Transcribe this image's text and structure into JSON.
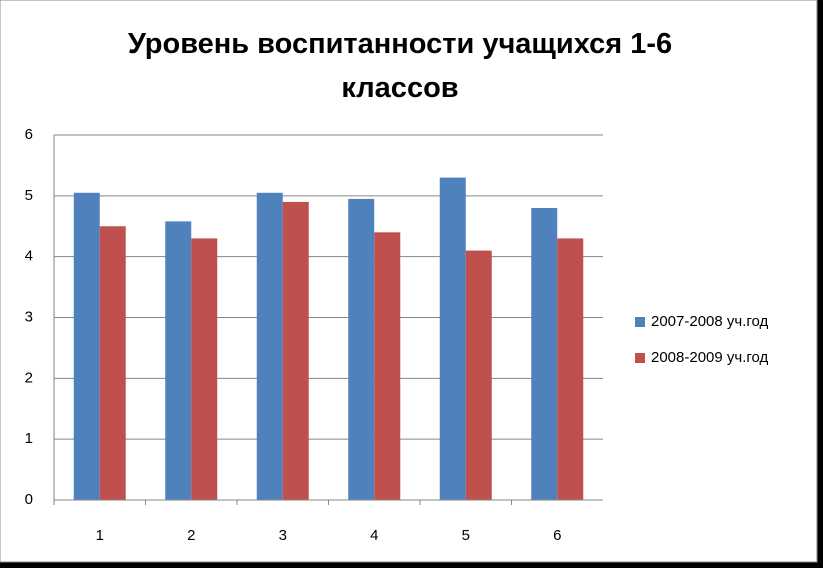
{
  "chart_data": {
    "type": "bar",
    "title": "Уровень воспитанности учащихся 1-6 классов",
    "categories": [
      "1",
      "2",
      "3",
      "4",
      "5",
      "6"
    ],
    "series": [
      {
        "name": "2007-2008 уч.год",
        "color": "#4f81bd",
        "values": [
          5.05,
          4.58,
          5.05,
          4.95,
          5.3,
          4.8
        ]
      },
      {
        "name": "2008-2009 уч.год",
        "color": "#c0504d",
        "values": [
          4.5,
          4.3,
          4.9,
          4.4,
          4.1,
          4.3
        ]
      }
    ],
    "ylim": [
      0,
      6
    ],
    "yticks": [
      0,
      1,
      2,
      3,
      4,
      5,
      6
    ],
    "grid": true,
    "legend": "right"
  }
}
